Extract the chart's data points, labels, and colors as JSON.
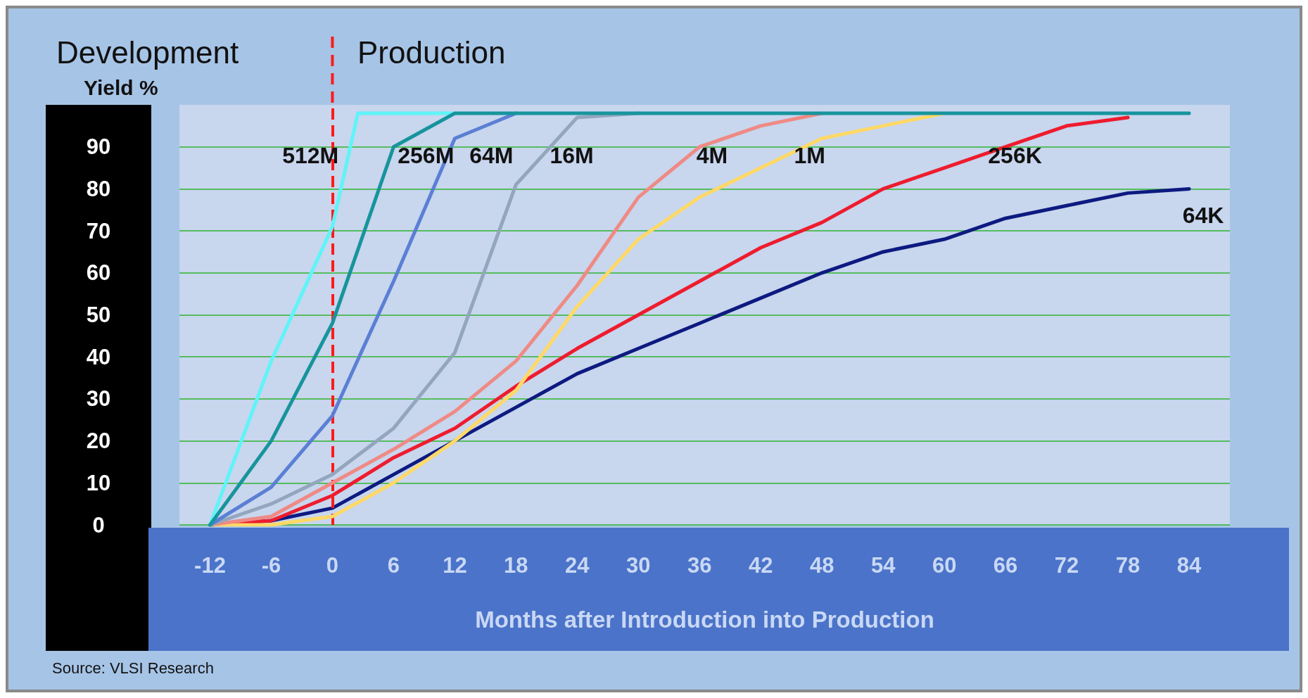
{
  "chart_data": {
    "type": "line",
    "ylabel": "Yield %",
    "xlabel": "Months after Introduction into Production",
    "xlim": [
      -15,
      88
    ],
    "xticks": [
      -12,
      -6,
      0,
      6,
      12,
      18,
      24,
      30,
      36,
      42,
      48,
      54,
      60,
      66,
      72,
      78,
      84
    ],
    "ylim": [
      0,
      100
    ],
    "yticks": [
      0,
      10,
      20,
      30,
      40,
      50,
      60,
      70,
      80,
      90
    ],
    "grid": "y",
    "legend": false,
    "marker": "none",
    "line_style": "solid",
    "ref_lines": [
      {
        "axis": "x",
        "value": 0,
        "color": "#ff1a1a",
        "line_style": "dashed"
      }
    ],
    "annotations": [
      "Development",
      "Production",
      "Source: VLSI Research"
    ],
    "series": [
      {
        "name": "64K",
        "color": "#0d1a80",
        "x": [
          -12,
          -6,
          0,
          6,
          12,
          18,
          24,
          30,
          36,
          42,
          48,
          54,
          60,
          66,
          72,
          78,
          84
        ],
        "values": [
          0,
          1,
          4,
          12,
          20,
          28,
          36,
          42,
          48,
          54,
          60,
          65,
          68,
          73,
          76,
          79,
          80
        ]
      },
      {
        "name": "256K",
        "color": "#ee1c2e",
        "x": [
          -12,
          -6,
          0,
          6,
          12,
          18,
          24,
          30,
          36,
          42,
          48,
          54,
          60,
          66,
          72,
          78
        ],
        "values": [
          0,
          1,
          7,
          16,
          23,
          33,
          42,
          50,
          58,
          66,
          72,
          80,
          85,
          90,
          95,
          97
        ]
      },
      {
        "name": "1M",
        "color": "#ffd966",
        "x": [
          -12,
          -6,
          0,
          6,
          12,
          18,
          24,
          30,
          36,
          42,
          48,
          54,
          60
        ],
        "values": [
          0,
          0,
          2,
          10,
          20,
          32,
          52,
          68,
          78,
          85,
          92,
          95,
          98
        ]
      },
      {
        "name": "4M",
        "color": "#ef8a84",
        "x": [
          -12,
          -6,
          0,
          6,
          12,
          18,
          24,
          30,
          36,
          42,
          48
        ],
        "values": [
          0,
          2,
          10,
          18,
          27,
          39,
          57,
          78,
          90,
          95,
          98
        ]
      },
      {
        "name": "16M",
        "color": "#93a6bd",
        "x": [
          -12,
          -6,
          0,
          6,
          12,
          18,
          24,
          30
        ],
        "values": [
          0,
          5,
          12,
          23,
          41,
          81,
          97,
          98
        ]
      },
      {
        "name": "64M",
        "color": "#5b7fd4",
        "x": [
          -12,
          -6,
          0,
          6,
          12,
          18
        ],
        "values": [
          0,
          9,
          26,
          58,
          92,
          98
        ]
      },
      {
        "name": "512M",
        "color": "#5ff4f8",
        "x": [
          -12,
          -6,
          0,
          2.5,
          12
        ],
        "values": [
          0,
          39,
          71,
          98,
          98
        ]
      },
      {
        "name": "256M",
        "color": "#17949c",
        "x": [
          -12,
          -6,
          0,
          6,
          12,
          84
        ],
        "values": [
          0,
          20,
          48,
          90,
          98,
          98
        ]
      }
    ]
  }
}
